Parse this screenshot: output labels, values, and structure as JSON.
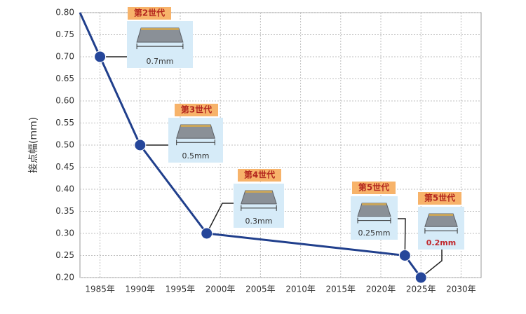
{
  "chart_data": {
    "type": "line",
    "y_label": "接点幅(mm)",
    "xlim": [
      1982.5,
      2032.5
    ],
    "ylim": [
      0.2,
      0.8
    ],
    "xticks": [
      {
        "value": 1985,
        "label": "1985年"
      },
      {
        "value": 1990,
        "label": "1990年"
      },
      {
        "value": 1995,
        "label": "1995年"
      },
      {
        "value": 2000,
        "label": "2000年"
      },
      {
        "value": 2005,
        "label": "2005年"
      },
      {
        "value": 2010,
        "label": "2010年"
      },
      {
        "value": 2015,
        "label": "2015年"
      },
      {
        "value": 2020,
        "label": "2020年"
      },
      {
        "value": 2025,
        "label": "2025年"
      },
      {
        "value": 2030,
        "label": "2030年"
      }
    ],
    "yticks": [
      {
        "value": 0.2,
        "label": "0.20"
      },
      {
        "value": 0.25,
        "label": "0.25"
      },
      {
        "value": 0.3,
        "label": "0.30"
      },
      {
        "value": 0.35,
        "label": "0.35"
      },
      {
        "value": 0.4,
        "label": "0.40"
      },
      {
        "value": 0.45,
        "label": "0.45"
      },
      {
        "value": 0.5,
        "label": "0.50"
      },
      {
        "value": 0.55,
        "label": "0.55"
      },
      {
        "value": 0.6,
        "label": "0.60"
      },
      {
        "value": 0.65,
        "label": "0.65"
      },
      {
        "value": 0.7,
        "label": "0.70"
      },
      {
        "value": 0.75,
        "label": "0.75"
      },
      {
        "value": 0.8,
        "label": "0.80"
      }
    ],
    "grid": true,
    "series": [
      {
        "color": "#203f8c",
        "x": [
          1985,
          1990,
          1998.3,
          2023,
          2025
        ],
        "values": [
          0.7,
          0.5,
          0.3,
          0.25,
          0.2
        ]
      }
    ],
    "annotations": [
      {
        "generation": "第2世代",
        "width": "0.7mm"
      },
      {
        "generation": "第3世代",
        "width": "0.5mm"
      },
      {
        "generation": "第4世代",
        "width": "0.3mm"
      },
      {
        "generation": "第5世代",
        "width": "0.25mm"
      },
      {
        "generation": "第5世代",
        "width": "0.2mm"
      }
    ]
  }
}
